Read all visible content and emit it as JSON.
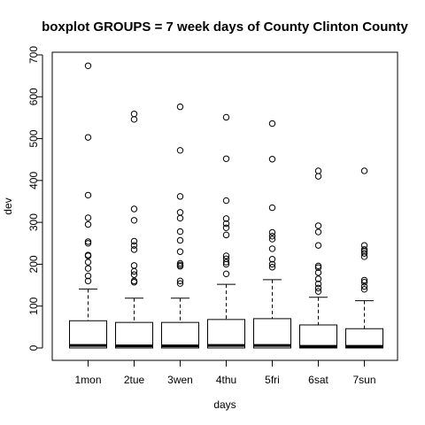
{
  "chart_data": {
    "type": "boxplot",
    "title": "boxplot GROUPS = 7 week days of County Clinton County",
    "xlabel": "days",
    "ylabel": "dev",
    "ylim": [
      0,
      700
    ],
    "yticks": [
      0,
      100,
      200,
      300,
      400,
      500,
      600,
      700
    ],
    "grid": false,
    "categories": [
      "1mon",
      "2tue",
      "3wen",
      "4thu",
      "5fri",
      "6sat",
      "7sun"
    ],
    "boxes": [
      {
        "min": 0,
        "q1": 0,
        "median": 6,
        "q3": 65,
        "whisker_high": 141,
        "outliers": [
          160,
          172,
          190,
          205,
          220,
          222,
          250,
          254,
          295,
          311,
          365,
          503,
          674
        ]
      },
      {
        "min": 0,
        "q1": 0,
        "median": 5,
        "q3": 61,
        "whisker_high": 119,
        "outliers": [
          157,
          160,
          175,
          183,
          197,
          235,
          245,
          255,
          305,
          332,
          546,
          559
        ]
      },
      {
        "min": 0,
        "q1": 0,
        "median": 5,
        "q3": 61,
        "whisker_high": 119,
        "outliers": [
          154,
          160,
          195,
          198,
          202,
          230,
          257,
          278,
          310,
          324,
          362,
          472,
          576
        ]
      },
      {
        "min": 0,
        "q1": 0,
        "median": 6,
        "q3": 68,
        "whisker_high": 152,
        "outliers": [
          177,
          200,
          205,
          213,
          220,
          270,
          287,
          297,
          309,
          352,
          452,
          551
        ]
      },
      {
        "min": 0,
        "q1": 0,
        "median": 6,
        "q3": 70,
        "whisker_high": 163,
        "outliers": [
          193,
          200,
          212,
          237,
          260,
          267,
          276,
          335,
          451,
          536
        ]
      },
      {
        "min": 0,
        "q1": 0,
        "median": 4,
        "q3": 55,
        "whisker_high": 121,
        "outliers": [
          135,
          143,
          153,
          165,
          180,
          192,
          196,
          245,
          277,
          292,
          410,
          423
        ]
      },
      {
        "min": 0,
        "q1": 0,
        "median": 4,
        "q3": 46,
        "whisker_high": 113,
        "outliers": [
          140,
          147,
          157,
          162,
          218,
          226,
          231,
          235,
          245,
          423
        ]
      }
    ]
  }
}
